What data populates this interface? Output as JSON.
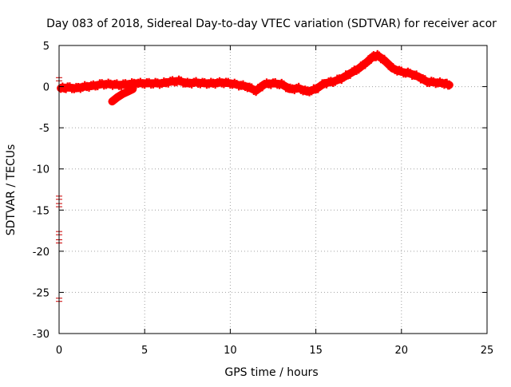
{
  "chart_data": {
    "type": "scatter",
    "title": "Day 083 of 2018, Sidereal Day-to-day VTEC variation (SDTVAR) for receiver acor",
    "xlabel": "GPS time / hours",
    "ylabel": "SDTVAR / TECUs",
    "xlim": [
      0,
      25
    ],
    "ylim": [
      -30,
      5
    ],
    "xticks": [
      0,
      5,
      10,
      15,
      20,
      25
    ],
    "yticks": [
      5,
      0,
      -5,
      -10,
      -15,
      -20,
      -25,
      -30
    ],
    "grid": true,
    "series": [
      {
        "name": "SDTVAR",
        "color": "#ff0000",
        "marker": "errorbar",
        "trace": [
          [
            0.1,
            -0.2
          ],
          [
            0.5,
            -0.1
          ],
          [
            1.0,
            -0.2
          ],
          [
            1.5,
            0.0
          ],
          [
            2.0,
            0.1
          ],
          [
            2.5,
            0.3
          ],
          [
            3.0,
            0.3
          ],
          [
            3.5,
            0.2
          ],
          [
            4.0,
            0.3
          ],
          [
            4.5,
            0.4
          ],
          [
            5.0,
            0.4
          ],
          [
            5.5,
            0.4
          ],
          [
            6.0,
            0.4
          ],
          [
            6.5,
            0.6
          ],
          [
            7.0,
            0.7
          ],
          [
            7.5,
            0.4
          ],
          [
            8.0,
            0.5
          ],
          [
            8.5,
            0.4
          ],
          [
            9.0,
            0.4
          ],
          [
            9.5,
            0.5
          ],
          [
            10.0,
            0.4
          ],
          [
            10.5,
            0.2
          ],
          [
            11.0,
            0.0
          ],
          [
            11.5,
            -0.5
          ],
          [
            12.0,
            0.3
          ],
          [
            12.5,
            0.4
          ],
          [
            13.0,
            0.3
          ],
          [
            13.5,
            -0.3
          ],
          [
            14.0,
            -0.2
          ],
          [
            14.5,
            -0.6
          ],
          [
            15.0,
            -0.3
          ],
          [
            15.5,
            0.4
          ],
          [
            16.0,
            0.6
          ],
          [
            16.5,
            1.0
          ],
          [
            17.0,
            1.6
          ],
          [
            17.5,
            2.2
          ],
          [
            18.0,
            3.0
          ],
          [
            18.3,
            3.6
          ],
          [
            18.6,
            3.8
          ],
          [
            19.0,
            3.2
          ],
          [
            19.5,
            2.2
          ],
          [
            20.0,
            1.8
          ],
          [
            20.5,
            1.6
          ],
          [
            21.0,
            1.2
          ],
          [
            21.5,
            0.6
          ],
          [
            22.0,
            0.5
          ],
          [
            22.5,
            0.4
          ],
          [
            22.8,
            0.2
          ]
        ],
        "branch": [
          [
            3.1,
            -1.8
          ],
          [
            3.4,
            -1.3
          ],
          [
            3.7,
            -0.9
          ],
          [
            4.0,
            -0.6
          ],
          [
            4.3,
            -0.3
          ]
        ],
        "isolated_points": [
          [
            0.0,
            0.9
          ],
          [
            0.0,
            -13.5
          ],
          [
            0.0,
            -14.4
          ],
          [
            0.0,
            -17.8
          ],
          [
            0.0,
            -18.8
          ],
          [
            0.0,
            -25.9
          ]
        ]
      }
    ]
  }
}
